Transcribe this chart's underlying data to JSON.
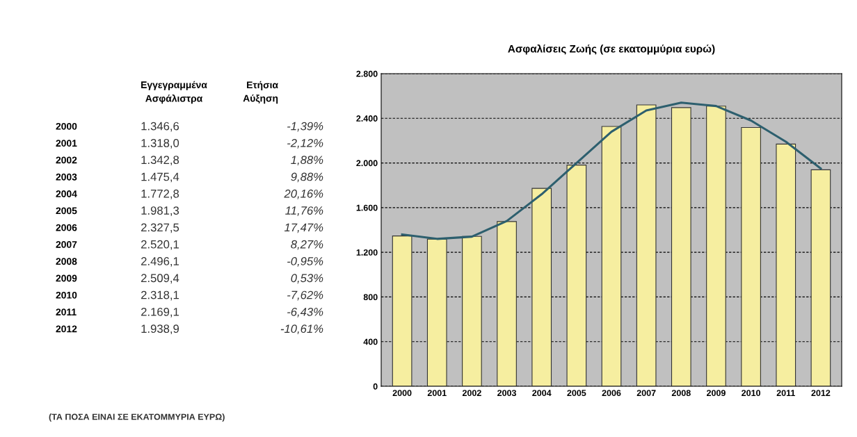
{
  "chart_data": {
    "type": "bar",
    "title": "Ασφαλίσεις Ζωής (σε εκατομμύρια ευρώ)",
    "categories": [
      "2000",
      "2001",
      "2002",
      "2003",
      "2004",
      "2005",
      "2006",
      "2007",
      "2008",
      "2009",
      "2010",
      "2011",
      "2012"
    ],
    "series": [
      {
        "color": "#f6eea0",
        "values": [
          1346.6,
          1318.0,
          1342.8,
          1475.4,
          1772.8,
          1981.3,
          2327.5,
          2520.1,
          2496.1,
          2509.4,
          2318.1,
          2169.1,
          1938.9
        ]
      },
      {
        "type": "line",
        "color": "#2d5f6e",
        "values": [
          1360,
          1320,
          1340,
          1480,
          1720,
          2000,
          2280,
          2470,
          2540,
          2510,
          2380,
          2190,
          1950
        ]
      }
    ],
    "ylim": [
      0,
      2800
    ],
    "yticks": [
      0,
      {
        "value": 400,
        "label": "400"
      },
      {
        "value": 800,
        "label": "800"
      },
      {
        "value": 1200,
        "label": "1.200"
      },
      {
        "value": 1600,
        "label": "1.600"
      },
      {
        "value": 2000,
        "label": "2.000"
      },
      {
        "value": 2400,
        "label": "2.400"
      },
      {
        "value": 2800,
        "label": "2.800"
      }
    ],
    "grid": "y",
    "annotations": [
      "Εγγεγραμμένα Ασφάλιστρα",
      "Ετήσια Αύξηση",
      "1.346,6",
      "1.318,0",
      "1.342,8",
      "1.475,4",
      "1.772,8",
      "1.981,3",
      "2.327,5",
      "2.520,1",
      "2.496,1",
      "2.509,4",
      "2.318,1",
      "2.169,1",
      "1.938,9",
      "-1,39%",
      "-2,12%",
      "1,88%",
      "9,88%",
      "20,16%",
      "11,76%",
      "17,47%",
      "8,27%",
      "-0,95%",
      "0,53%",
      "-7,62%",
      "-6,43%",
      "-10,61%",
      "(ΤΑ ΠΟΣΑ ΕΙΝΑΙ ΣΕ ΕΚΑΤΟΜΜΥΡΙΑ ΕΥΡΩ)"
    ]
  }
}
